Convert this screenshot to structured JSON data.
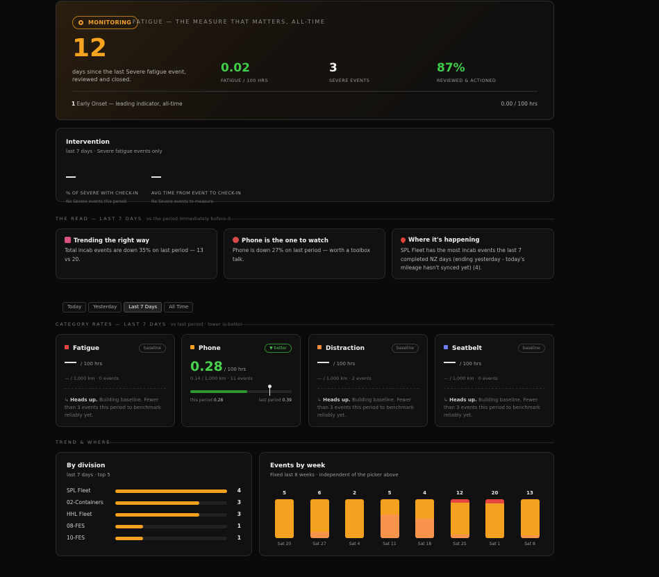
{
  "hero": {
    "badge": "MONITORING",
    "heading": "FATIGUE — THE MEASURE THAT MATTERS, ALL-TIME",
    "days": "12",
    "days_caption": "days since the last Severe fatigue event, reviewed and closed.",
    "stats": [
      {
        "value": "0.02",
        "label": "FATIGUE / 100 HRS",
        "color": "#3fcd4a"
      },
      {
        "value": "3",
        "label": "SEVERE EVENTS",
        "color": "#f2f2f2"
      },
      {
        "value": "87%",
        "label": "REVIEWED & ACTIONED",
        "color": "#3fcd4a"
      }
    ],
    "early_count": "1",
    "early_text": "Early Onset — leading indicator, all-time",
    "early_rate": "0.00 / 100 hrs"
  },
  "intervention": {
    "title": "Intervention",
    "subtitle": "last 7 days · Severe fatigue events only",
    "metrics": [
      {
        "label": "% OF SEVERE WITH CHECK-IN",
        "note": "No Severe events this period"
      },
      {
        "label": "AVG TIME FROM EVENT TO CHECK-IN",
        "note": "No Severe events to measure"
      }
    ]
  },
  "read": {
    "section": "THE READ — LAST 7 DAYS",
    "section_note": "vs the period immediately before it",
    "cards": [
      {
        "icon": "chart-down-icon",
        "icon_color": "#d9517e",
        "title": "Trending the right way",
        "text": "Total incab events are down 35% on last period — 13 vs 20."
      },
      {
        "icon": "target-icon",
        "icon_color": "#d84a4a",
        "title": "Phone is the one to watch",
        "text": "Phone is down 27% on last period — worth a toolbox talk."
      },
      {
        "icon": "pin-icon",
        "icon_color": "#e0443a",
        "title": "Where it's happening",
        "text": "SPL Fleet has the most incab events the last 7 completed NZ days (ending yesterday - today's mileage hasn't synced yet) (4)."
      }
    ]
  },
  "tabs": [
    "Today",
    "Yesterday",
    "Last 7 Days",
    "All Time"
  ],
  "active_tab": 2,
  "categories": {
    "section": "CATEGORY RATES — LAST 7 DAYS",
    "section_note": "vs last period · lower is better",
    "items": [
      {
        "name": "Fatigue",
        "color": "#e5463f",
        "pill": "baseline",
        "unit": "/ 100 hrs",
        "meta": "— / 1,000 km · 0 events",
        "note_bold": "Heads up.",
        "note": "Building baseline. Fewer than 3 events this period to benchmark reliably yet."
      },
      {
        "name": "Phone",
        "color": "#f4a11f",
        "pill": "▼ better",
        "value": "0.28",
        "unit": "/ 100 hrs",
        "meta": "0.14 / 1,000 km · 11 events",
        "this_label": "this period",
        "this_value": "0.28",
        "last_label": "last period",
        "last_value": "0.39",
        "this_frac": 0.28,
        "last_frac": 0.39
      },
      {
        "name": "Distraction",
        "color": "#f28b3c",
        "pill": "baseline",
        "unit": "/ 100 hrs",
        "meta": "— / 1,000 km · 2 events",
        "note_bold": "Heads up.",
        "note": "Building baseline. Fewer than 3 events this period to benchmark reliably yet."
      },
      {
        "name": "Seatbelt",
        "color": "#6f7df0",
        "pill": "baseline",
        "unit": "/ 100 hrs",
        "meta": "— / 1,000 km · 0 events",
        "note_bold": "Heads up.",
        "note": "Building baseline. Fewer than 3 events this period to benchmark reliably yet."
      }
    ]
  },
  "trend": {
    "section": "TREND & WHERE",
    "division": {
      "title": "By division",
      "subtitle": "last 7 days · top 5",
      "rows": [
        {
          "label": "SPL Fleet",
          "value": 4
        },
        {
          "label": "02-Containers",
          "value": 3
        },
        {
          "label": "HHL Fleet",
          "value": 3
        },
        {
          "label": "08-FES",
          "value": 1
        },
        {
          "label": "10-FES",
          "value": 1
        }
      ],
      "max": 4
    },
    "weekly": {
      "title": "Events by week",
      "subtitle": "Fixed last 8 weeks · independent of the picker above",
      "weeks": [
        {
          "label": "Sat 20",
          "total": 5,
          "red": 0,
          "orange": 5,
          "light": 0
        },
        {
          "label": "Sat 27",
          "total": 6,
          "red": 0,
          "orange": 5,
          "light": 1
        },
        {
          "label": "Sat 4",
          "total": 2,
          "red": 0,
          "orange": 2,
          "light": 0
        },
        {
          "label": "Sat 11",
          "total": 5,
          "red": 0,
          "orange": 2,
          "light": 3
        },
        {
          "label": "Sat 18",
          "total": 4,
          "red": 0,
          "orange": 2,
          "light": 2
        },
        {
          "label": "Sat 25",
          "total": 12,
          "red": 1,
          "orange": 10,
          "light": 1
        },
        {
          "label": "Sat 1",
          "total": 20,
          "red": 2,
          "orange": 18,
          "light": 0
        },
        {
          "label": "Sat 8",
          "total": 13,
          "red": 0,
          "orange": 12,
          "light": 1
        }
      ],
      "colors": {
        "red": "#e5463f",
        "orange": "#f4a11f",
        "light": "#f7934a"
      }
    }
  }
}
